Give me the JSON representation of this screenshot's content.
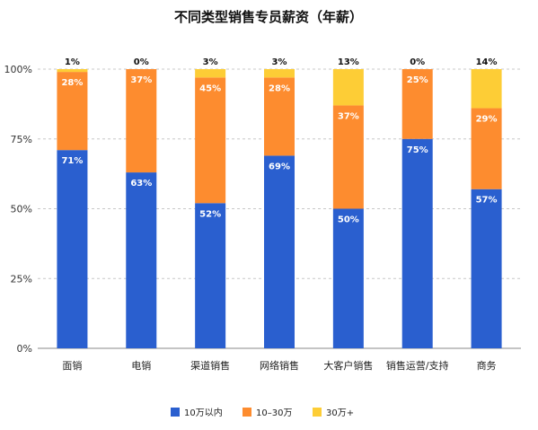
{
  "chart_data": {
    "type": "bar",
    "stacked": true,
    "percent": true,
    "title": "不同类型销售专员薪资（年薪）",
    "categories": [
      "面销",
      "电销",
      "渠道销售",
      "网络销售",
      "大客户销售",
      "销售运营/支持",
      "商务"
    ],
    "series": [
      {
        "name": "10万以内",
        "color": "#2a5fcf",
        "values": [
          71,
          63,
          52,
          69,
          50,
          75,
          57
        ]
      },
      {
        "name": "10–30万",
        "color": "#fd8c2f",
        "values": [
          28,
          37,
          45,
          28,
          37,
          25,
          29
        ]
      },
      {
        "name": "30万+",
        "color": "#fdcd36",
        "values": [
          1,
          0,
          3,
          3,
          13,
          0,
          14
        ]
      }
    ],
    "yticks": [
      "0%",
      "25%",
      "50%",
      "75%",
      "100%"
    ],
    "ylim": [
      0,
      100
    ],
    "grid": true,
    "legend_position": "bottom"
  }
}
